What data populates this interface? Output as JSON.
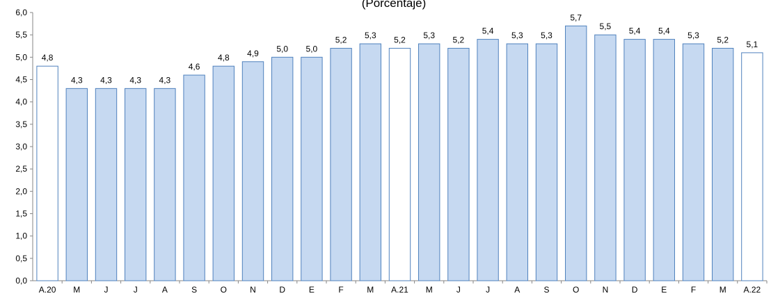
{
  "chart_data": {
    "type": "bar",
    "subtitle": "(Porcentaje)",
    "categories": [
      "A.20",
      "M",
      "J",
      "J",
      "A",
      "S",
      "O",
      "N",
      "D",
      "E",
      "F",
      "M",
      "A.21",
      "M",
      "J",
      "J",
      "A",
      "S",
      "O",
      "N",
      "D",
      "E",
      "F",
      "M",
      "A.22"
    ],
    "values": [
      4.8,
      4.3,
      4.3,
      4.3,
      4.3,
      4.6,
      4.8,
      4.9,
      5.0,
      5.0,
      5.2,
      5.3,
      5.2,
      5.3,
      5.2,
      5.4,
      5.3,
      5.3,
      5.7,
      5.5,
      5.4,
      5.4,
      5.3,
      5.2,
      5.1
    ],
    "data_labels": [
      "4,8",
      "4,3",
      "4,3",
      "4,3",
      "4,3",
      "4,6",
      "4,8",
      "4,9",
      "5,0",
      "5,0",
      "5,2",
      "5,3",
      "5,2",
      "5,3",
      "5,2",
      "5,4",
      "5,3",
      "5,3",
      "5,7",
      "5,5",
      "5,4",
      "5,4",
      "5,3",
      "5,2",
      "5,1"
    ],
    "highlight": [
      true,
      false,
      false,
      false,
      false,
      false,
      false,
      false,
      false,
      false,
      false,
      false,
      true,
      false,
      false,
      false,
      false,
      false,
      false,
      false,
      false,
      false,
      false,
      false,
      true
    ],
    "ylim": [
      0,
      6.0
    ],
    "yticks": [
      0,
      0.5,
      1.0,
      1.5,
      2.0,
      2.5,
      3.0,
      3.5,
      4.0,
      4.5,
      5.0,
      5.5,
      6.0
    ],
    "ytick_labels": [
      "0,0",
      "0,5",
      "1,0",
      "1,5",
      "2,0",
      "2,5",
      "3,0",
      "3,5",
      "4,0",
      "4,5",
      "5,0",
      "5,5",
      "6,0"
    ],
    "grid": false,
    "legend": "none",
    "xlabel": "",
    "ylabel": ""
  },
  "colors": {
    "bar_fill": "#c6d9f1",
    "bar_highlight_fill": "#ffffff",
    "bar_stroke": "#4f81bd",
    "axis": "#868686"
  }
}
